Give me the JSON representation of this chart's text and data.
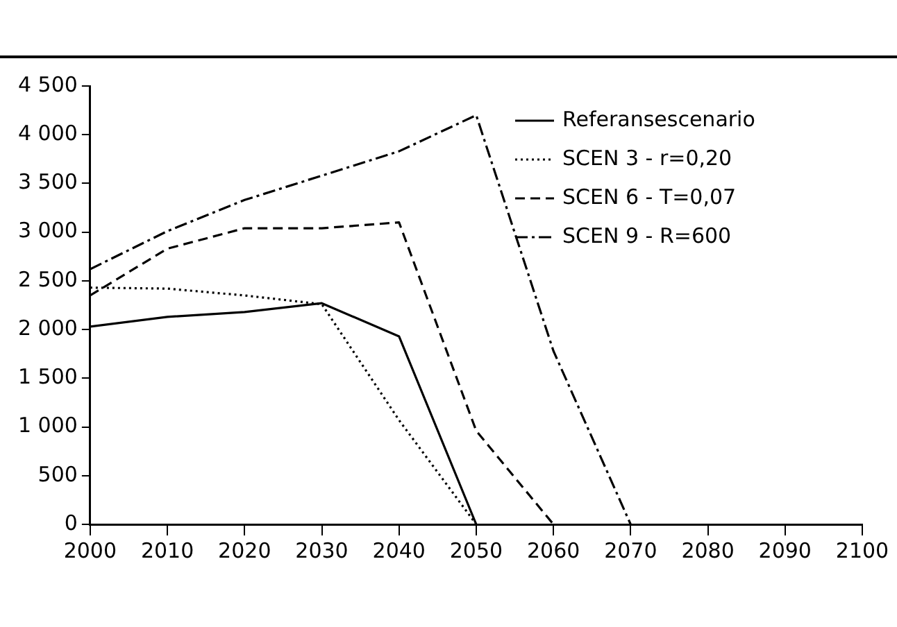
{
  "chart_data": {
    "type": "line",
    "x": [
      2000,
      2010,
      2020,
      2030,
      2040,
      2050,
      2060,
      2070
    ],
    "series": [
      {
        "name": "Referansescenario",
        "color": "#000000",
        "line_style": "solid",
        "values": [
          2030,
          2130,
          2180,
          2270,
          1930,
          0,
          null,
          null
        ]
      },
      {
        "name": "SCEN 3 - r=0,20",
        "color": "#000000",
        "line_style": "dotted",
        "values": [
          2430,
          2420,
          2350,
          2260,
          1070,
          0,
          null,
          null
        ]
      },
      {
        "name": "SCEN 6 - T=0,07",
        "color": "#000000",
        "line_style": "dashed",
        "values": [
          2350,
          2830,
          3040,
          3040,
          3100,
          960,
          0,
          null
        ]
      },
      {
        "name": "SCEN 9 - R=600",
        "color": "#000000",
        "line_style": "dashdot",
        "values": [
          2620,
          3010,
          3330,
          3580,
          3830,
          4200,
          1780,
          0
        ]
      }
    ],
    "xlim": [
      2000,
      2100
    ],
    "xticks": [
      2000,
      2010,
      2020,
      2030,
      2040,
      2050,
      2060,
      2070,
      2080,
      2090,
      2100
    ],
    "ylim": [
      0,
      4500
    ],
    "yticks": [
      {
        "value": 0,
        "label": "0"
      },
      {
        "value": 500,
        "label": "500"
      },
      {
        "value": 1000,
        "label": "1 000"
      },
      {
        "value": 1500,
        "label": "1 500"
      },
      {
        "value": 2000,
        "label": "2 000"
      },
      {
        "value": 2500,
        "label": "2 500"
      },
      {
        "value": 3000,
        "label": "3 000"
      },
      {
        "value": 3500,
        "label": "3 500"
      },
      {
        "value": 4000,
        "label": "4 000"
      },
      {
        "value": 4500,
        "label": "4 500"
      }
    ],
    "grid": false,
    "legend": "top right",
    "marker": "none"
  }
}
